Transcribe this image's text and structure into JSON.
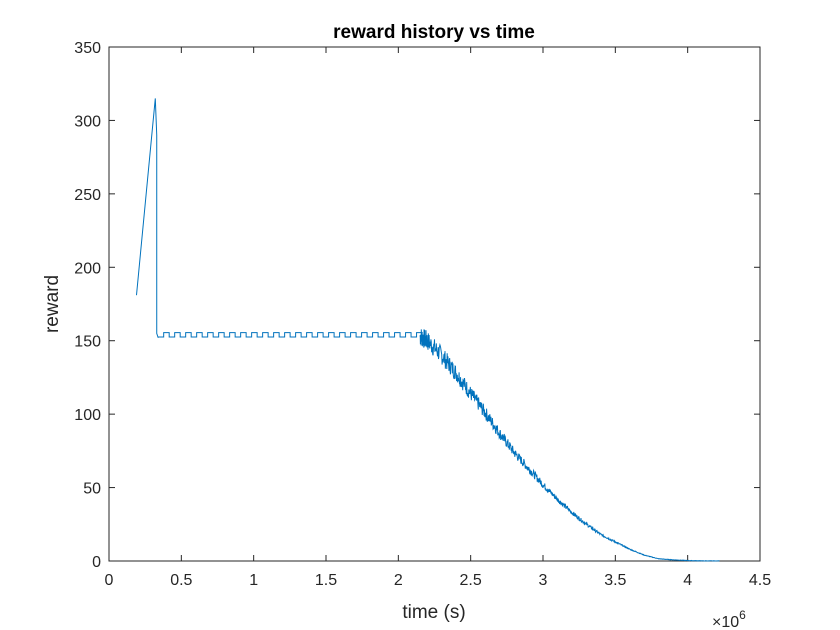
{
  "chart_data": {
    "type": "line",
    "title": "reward history vs time",
    "xlabel": "time (s)",
    "ylabel": "reward",
    "x_multiplier_label": "×10",
    "x_multiplier_exponent": "6",
    "xlim": [
      0,
      4.5
    ],
    "ylim": [
      0,
      350
    ],
    "x_ticks": [
      0,
      0.5,
      1,
      1.5,
      2,
      2.5,
      3,
      3.5,
      4,
      4.5
    ],
    "x_tick_labels": [
      "0",
      "0.5",
      "1",
      "1.5",
      "2",
      "2.5",
      "3",
      "3.5",
      "4",
      "4.5"
    ],
    "y_ticks": [
      0,
      50,
      100,
      150,
      200,
      250,
      300,
      350
    ],
    "y_tick_labels": [
      "0",
      "50",
      "100",
      "150",
      "200",
      "250",
      "300",
      "350"
    ],
    "grid": false,
    "line_color": "#0072BD",
    "series": [
      {
        "x": [
          0.19,
          0.32,
          0.33,
          0.33,
          0.34,
          0.5,
          1.0,
          1.5,
          2.0,
          2.15,
          2.2,
          2.3,
          2.4,
          2.5,
          2.6,
          2.7,
          2.8,
          2.9,
          3.0,
          3.1,
          3.2,
          3.3,
          3.4,
          3.5,
          3.6,
          3.7,
          3.8,
          3.9,
          4.0,
          4.1,
          4.22
        ],
        "y": [
          181,
          315,
          290,
          155,
          152,
          153,
          153,
          153,
          153,
          153,
          150,
          140,
          128,
          114,
          101,
          87,
          74,
          63,
          52,
          42,
          33,
          25,
          18,
          13,
          8,
          4,
          1.5,
          0.8,
          0.3,
          0.1,
          0.0
        ]
      }
    ]
  }
}
